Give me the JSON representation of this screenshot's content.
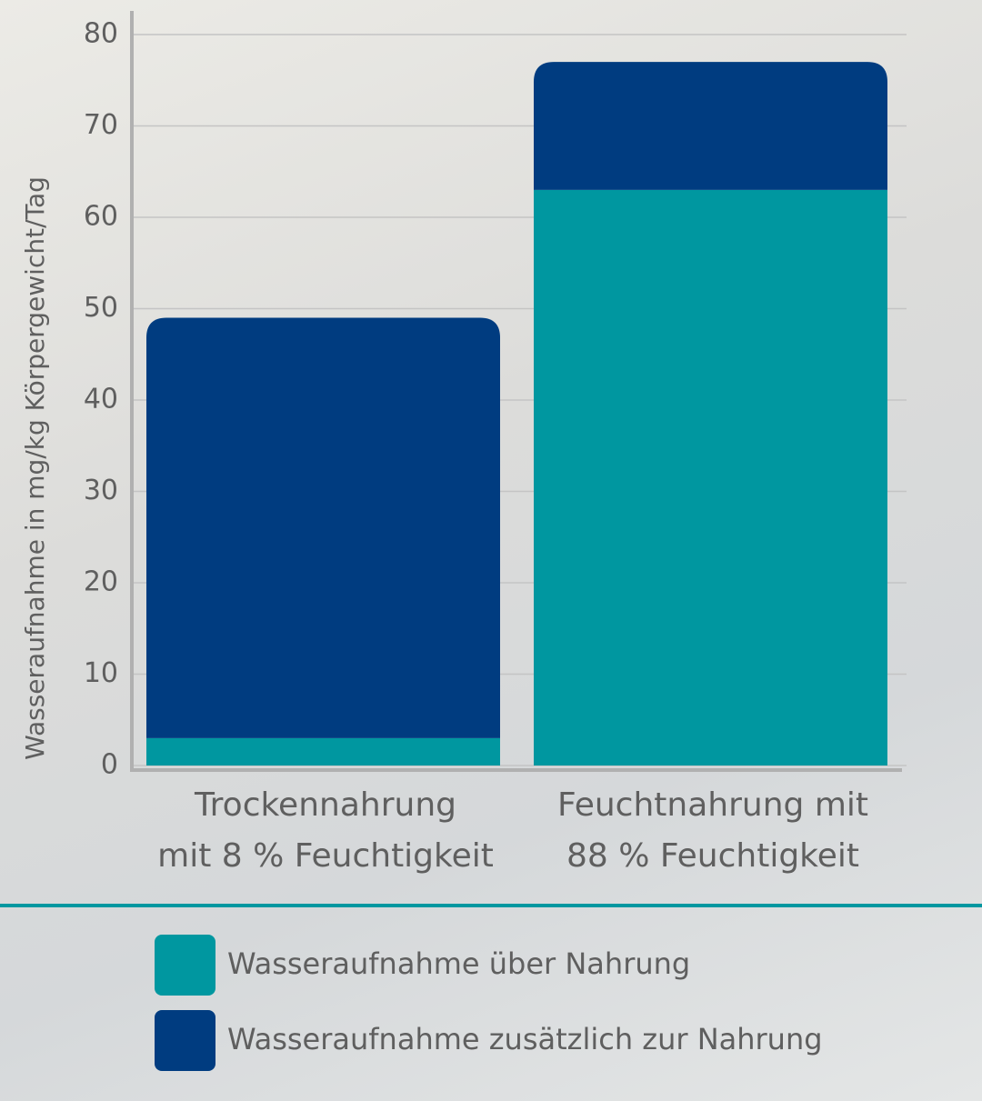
{
  "chart_data": {
    "type": "stacked_bar",
    "y_label": "Wasseraufnahme in mg/kg Körpergewicht/Tag",
    "categories": [
      "Trockennahrung\nmit 8 % Feuchtigkeit",
      "Feuchtnahrung mit\n88 % Feuchtigkeit"
    ],
    "series": [
      {
        "name": "Wasseraufnahme über Nahrung",
        "color": "#0097a0",
        "values": [
          3,
          63
        ]
      },
      {
        "name": "Wasseraufnahme zusätzlich zur Nahrung",
        "color": "#003c80",
        "values": [
          46,
          14
        ]
      }
    ],
    "ylim": [
      0,
      80
    ],
    "yticks": [
      0,
      10,
      20,
      30,
      40,
      50,
      60,
      70,
      80
    ],
    "grid": true
  }
}
